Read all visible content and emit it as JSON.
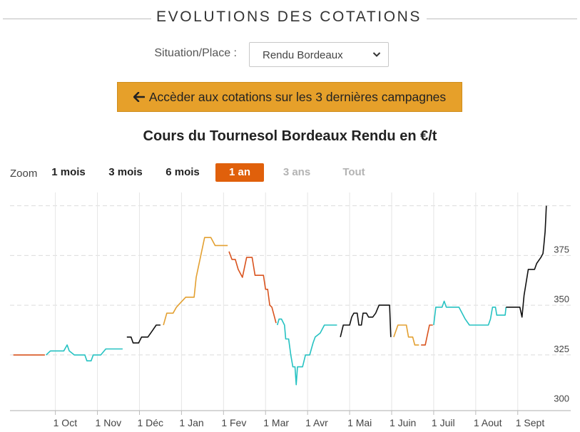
{
  "header": {
    "title": "EVOLUTIONS DES COTATIONS"
  },
  "situation": {
    "label": "Situation/Place :",
    "selected": "Rendu Bordeaux"
  },
  "campaign_button": {
    "label": "Accèder aux cotations sur les 3 dernières campagnes"
  },
  "zoom": {
    "label": "Zoom",
    "buttons": [
      {
        "label": "1 mois",
        "state": "normal"
      },
      {
        "label": "3 mois",
        "state": "normal"
      },
      {
        "label": "6 mois",
        "state": "normal"
      },
      {
        "label": "1 an",
        "state": "active"
      },
      {
        "label": "3 ans",
        "state": "disabled"
      },
      {
        "label": "Tout",
        "state": "disabled"
      }
    ]
  },
  "colors": {
    "accent_button": "#e6a02a",
    "zoom_active": "#e0600b",
    "segment_palette": {
      "red": "#d9531e",
      "teal": "#26c2c2",
      "black": "#111111",
      "orange": "#e3a031"
    }
  },
  "chart_data": {
    "type": "line",
    "title": "Cours du Tournesol Bordeaux Rendu en €/t",
    "xlabel": "",
    "ylabel": "",
    "x_ticks": [
      "1 Oct",
      "1 Nov",
      "1 Déc",
      "1 Jan",
      "1 Fev",
      "1 Mar",
      "1 Avr",
      "1 Mai",
      "1 Juin",
      "1 Juil",
      "1 Aout",
      "1 Sept"
    ],
    "y_ticks": [
      300,
      325,
      350,
      375
    ],
    "xlim": [
      -1.08,
      12.26
    ],
    "ylim": [
      297,
      402
    ],
    "grid": true,
    "legend": "none",
    "series": [
      {
        "color": "red",
        "points": [
          [
            -1.0,
            325
          ],
          [
            -0.25,
            325
          ]
        ]
      },
      {
        "color": "teal",
        "points": [
          [
            -0.22,
            325
          ],
          [
            -0.12,
            327
          ],
          [
            0.2,
            327
          ],
          [
            0.28,
            330
          ],
          [
            0.33,
            327
          ],
          [
            0.45,
            325
          ],
          [
            0.7,
            325
          ],
          [
            0.75,
            322
          ],
          [
            0.85,
            322
          ],
          [
            0.9,
            325
          ],
          [
            1.08,
            325
          ],
          [
            1.2,
            328
          ],
          [
            1.6,
            328
          ]
        ]
      },
      {
        "color": "black",
        "points": [
          [
            1.7,
            334
          ],
          [
            1.8,
            334
          ],
          [
            1.85,
            331
          ],
          [
            1.98,
            331
          ],
          [
            2.05,
            334
          ],
          [
            2.2,
            334
          ],
          [
            2.3,
            337
          ],
          [
            2.4,
            340
          ],
          [
            2.5,
            340
          ]
        ]
      },
      {
        "color": "orange",
        "points": [
          [
            2.57,
            340
          ],
          [
            2.65,
            346
          ],
          [
            2.8,
            346
          ],
          [
            2.88,
            349
          ],
          [
            3.1,
            354
          ],
          [
            3.3,
            354
          ],
          [
            3.35,
            364
          ],
          [
            3.55,
            384
          ],
          [
            3.7,
            384
          ],
          [
            3.8,
            380
          ],
          [
            4.1,
            380
          ]
        ]
      },
      {
        "color": "red",
        "points": [
          [
            4.13,
            377
          ],
          [
            4.2,
            373
          ],
          [
            4.28,
            373
          ],
          [
            4.35,
            368
          ],
          [
            4.45,
            364
          ],
          [
            4.55,
            374
          ],
          [
            4.68,
            374
          ],
          [
            4.75,
            365
          ],
          [
            4.95,
            365
          ],
          [
            5.0,
            358
          ],
          [
            5.05,
            358
          ],
          [
            5.1,
            350
          ],
          [
            5.15,
            349
          ],
          [
            5.25,
            341
          ]
        ]
      },
      {
        "color": "teal",
        "points": [
          [
            5.28,
            340
          ],
          [
            5.32,
            343
          ],
          [
            5.38,
            343
          ],
          [
            5.45,
            340
          ],
          [
            5.48,
            333
          ],
          [
            5.55,
            333
          ],
          [
            5.6,
            325
          ],
          [
            5.65,
            319
          ],
          [
            5.7,
            319
          ],
          [
            5.73,
            310
          ],
          [
            5.76,
            319
          ],
          [
            5.88,
            319
          ],
          [
            5.95,
            325
          ],
          [
            6.05,
            325
          ],
          [
            6.13,
            331
          ],
          [
            6.18,
            334
          ],
          [
            6.3,
            336
          ],
          [
            6.4,
            340
          ],
          [
            6.7,
            340
          ]
        ]
      },
      {
        "color": "black",
        "points": [
          [
            6.78,
            334
          ],
          [
            6.85,
            340
          ],
          [
            7.0,
            340
          ],
          [
            7.05,
            344
          ],
          [
            7.1,
            346
          ],
          [
            7.18,
            346
          ],
          [
            7.22,
            340
          ],
          [
            7.28,
            340
          ],
          [
            7.32,
            346
          ],
          [
            7.4,
            346
          ],
          [
            7.45,
            344
          ],
          [
            7.55,
            344
          ],
          [
            7.62,
            346
          ],
          [
            7.7,
            350
          ],
          [
            7.95,
            350
          ],
          [
            7.98,
            334
          ]
        ]
      },
      {
        "color": "orange",
        "points": [
          [
            8.05,
            334
          ],
          [
            8.15,
            340
          ],
          [
            8.35,
            340
          ],
          [
            8.4,
            334
          ],
          [
            8.5,
            334
          ],
          [
            8.55,
            330
          ],
          [
            8.65,
            330
          ]
        ]
      },
      {
        "color": "red",
        "points": [
          [
            8.7,
            330
          ],
          [
            8.8,
            330
          ],
          [
            8.9,
            340
          ],
          [
            8.98,
            340
          ]
        ]
      },
      {
        "color": "teal",
        "points": [
          [
            9.0,
            340
          ],
          [
            9.05,
            349
          ],
          [
            9.2,
            349
          ],
          [
            9.25,
            352
          ],
          [
            9.3,
            349
          ],
          [
            9.6,
            349
          ],
          [
            9.75,
            343
          ],
          [
            9.85,
            340
          ],
          [
            10.3,
            340
          ],
          [
            10.35,
            343
          ],
          [
            10.4,
            349
          ],
          [
            10.47,
            349
          ],
          [
            10.5,
            345
          ],
          [
            10.7,
            345
          ],
          [
            10.72,
            349
          ]
        ]
      },
      {
        "color": "black",
        "points": [
          [
            10.72,
            349
          ],
          [
            11.05,
            349
          ],
          [
            11.1,
            344
          ],
          [
            11.15,
            355
          ],
          [
            11.25,
            368
          ],
          [
            11.4,
            368
          ],
          [
            11.45,
            371
          ],
          [
            11.55,
            374
          ],
          [
            11.6,
            376
          ],
          [
            11.62,
            380
          ],
          [
            11.65,
            387
          ],
          [
            11.67,
            395
          ],
          [
            11.68,
            400
          ]
        ]
      }
    ]
  }
}
